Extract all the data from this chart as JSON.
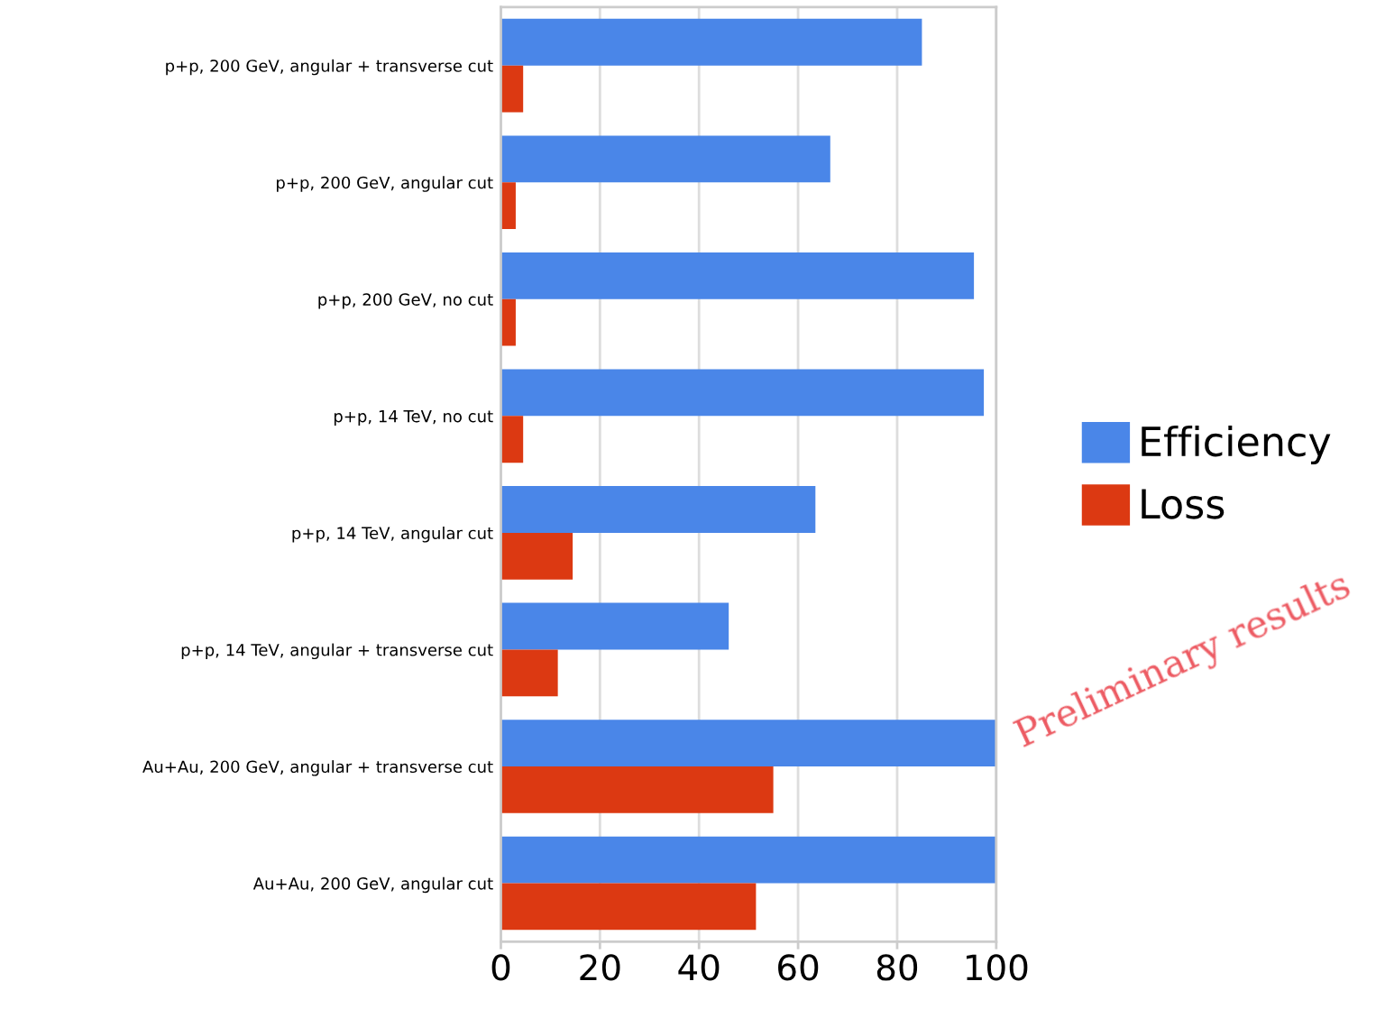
{
  "chart_data": {
    "type": "bar",
    "orientation": "horizontal",
    "categories": [
      "p+p, 200 GeV, angular + transverse cut",
      "p+p, 200 GeV, angular cut",
      "p+p, 200 GeV, no cut",
      "p+p, 14 TeV, no cut",
      "p+p, 14 TeV, angular cut",
      "p+p, 14 TeV, angular + transverse cut",
      "Au+Au, 200 GeV, angular + transverse cut",
      "Au+Au, 200 GeV, angular cut"
    ],
    "series": [
      {
        "name": "Efficiency",
        "color": "#4a86e8",
        "values": [
          85,
          66.5,
          95.5,
          97.5,
          63.5,
          46,
          100,
          100
        ]
      },
      {
        "name": "Loss",
        "color": "#dc3912",
        "values": [
          4.5,
          3,
          3,
          4.5,
          14.5,
          11.5,
          55,
          51.5
        ]
      }
    ],
    "xlim": [
      0,
      100
    ],
    "xticks": [
      0,
      20,
      40,
      60,
      80,
      100
    ],
    "grid": "x",
    "legend": "right",
    "annotations": [
      "Preliminary results"
    ]
  }
}
